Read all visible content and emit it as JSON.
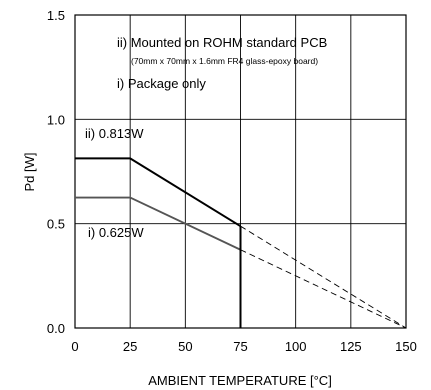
{
  "chart_data": {
    "type": "line",
    "xlabel": "AMBIENT TEMPERATURE [°C]",
    "ylabel": "Pd [W]",
    "xlim": [
      0,
      150
    ],
    "ylim": [
      0,
      1.5
    ],
    "x_ticks": [
      "0",
      "25",
      "50",
      "75",
      "100",
      "125",
      "150"
    ],
    "y_ticks": [
      "0.0",
      "0.5",
      "1.0",
      "1.5"
    ],
    "grid": true,
    "series": [
      {
        "name": "ii) 0.813W",
        "color": "#000000",
        "solid": [
          [
            0,
            0.813
          ],
          [
            25,
            0.813
          ],
          [
            75,
            0.488
          ]
        ],
        "dashed": [
          [
            75,
            0.488
          ],
          [
            150,
            0
          ]
        ]
      },
      {
        "name": "i) 0.625W",
        "color": "#555555",
        "solid": [
          [
            0,
            0.625
          ],
          [
            25,
            0.625
          ],
          [
            75,
            0.375
          ]
        ],
        "dashed": [
          [
            75,
            0.375
          ],
          [
            150,
            0
          ]
        ]
      }
    ],
    "annotations": {
      "legend_line1": "ii) Mounted on ROHM standard PCB",
      "legend_line2": "(70mm x 70mm x 1.6mm FR4 glass-epoxy board)",
      "legend_line3": "i) Package only"
    }
  }
}
